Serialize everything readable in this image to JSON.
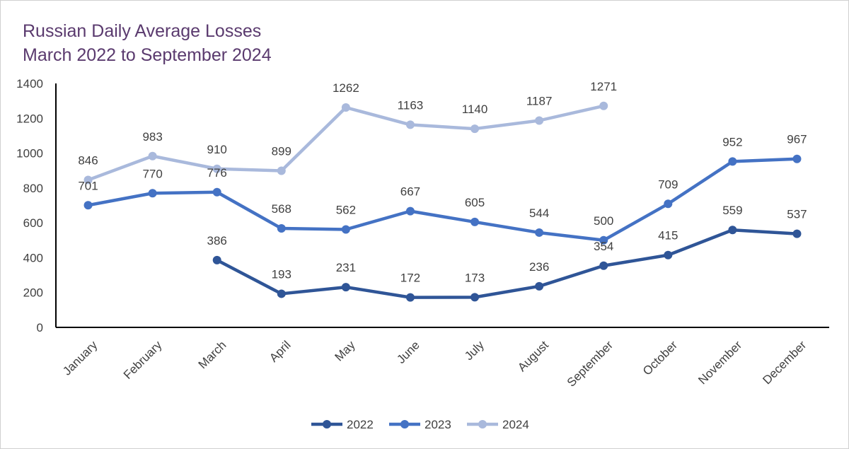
{
  "chart_data": {
    "type": "line",
    "title": [
      "Russian Daily Average Losses",
      "March 2022 to September 2024"
    ],
    "categories": [
      "January",
      "February",
      "March",
      "April",
      "May",
      "June",
      "July",
      "August",
      "September",
      "October",
      "November",
      "December"
    ],
    "ylim": [
      0,
      1400
    ],
    "yticks": [
      0,
      200,
      400,
      600,
      800,
      1000,
      1200,
      1400
    ],
    "grid": false,
    "legend_position": "bottom",
    "series": [
      {
        "name": "2022",
        "color": "#2f5597",
        "values": [
          null,
          null,
          386,
          193,
          231,
          172,
          173,
          236,
          354,
          415,
          559,
          537
        ]
      },
      {
        "name": "2023",
        "color": "#4472c4",
        "values": [
          701,
          770,
          776,
          568,
          562,
          667,
          605,
          544,
          500,
          709,
          952,
          967
        ]
      },
      {
        "name": "2024",
        "color": "#a9b9dc",
        "values": [
          846,
          983,
          910,
          899,
          1262,
          1163,
          1140,
          1187,
          1271,
          null,
          null,
          null
        ]
      }
    ]
  }
}
